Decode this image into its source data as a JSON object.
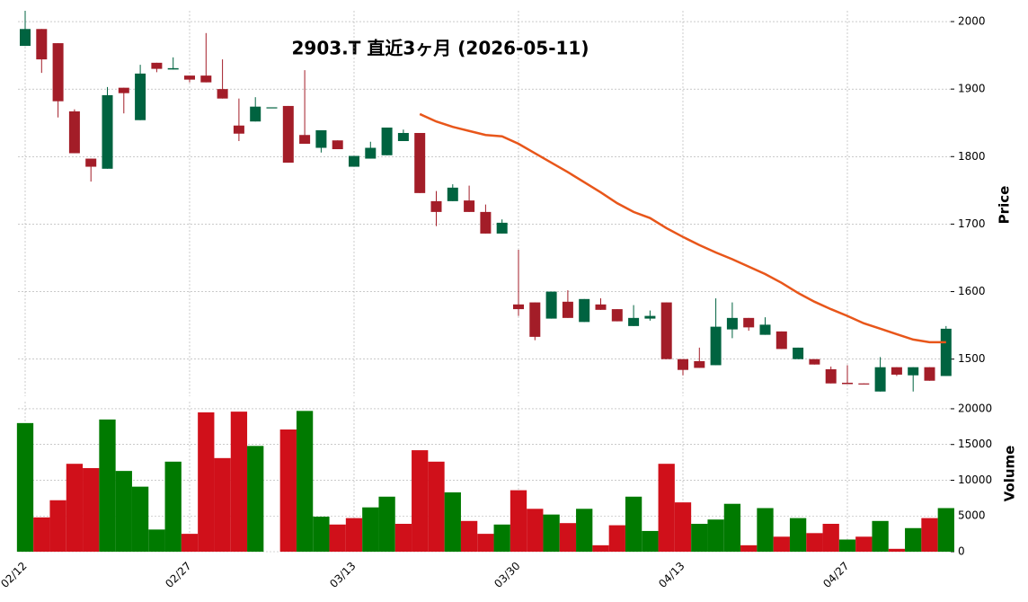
{
  "chart_data": {
    "type": "candlestick",
    "title": "2903.T  直近3ヶ月  (2026-05-11)",
    "categories": [
      "02/12",
      null,
      null,
      null,
      null,
      null,
      null,
      null,
      null,
      null,
      "02/27",
      null,
      null,
      null,
      null,
      null,
      null,
      null,
      null,
      null,
      "03/13",
      null,
      null,
      null,
      null,
      null,
      null,
      null,
      null,
      null,
      "03/30",
      null,
      null,
      null,
      null,
      null,
      null,
      null,
      null,
      null,
      "04/13",
      null,
      null,
      null,
      null,
      null,
      null,
      null,
      null,
      null,
      "04/27",
      null,
      null,
      null,
      null,
      null,
      null
    ],
    "open": [
      1964,
      1989,
      1968,
      1867,
      1797,
      1782,
      1902,
      1854,
      1939,
      1929,
      1920,
      1920,
      1900,
      1846,
      1852,
      1873,
      1875,
      1832,
      1813,
      1824,
      1785,
      1797,
      1802,
      1823,
      1835,
      1734,
      1734,
      1735,
      1718,
      1686,
      1581,
      1584,
      1560,
      1585,
      1555,
      1581,
      1574,
      1549,
      1560,
      1584,
      1500,
      1497,
      1491,
      1544,
      1561,
      1536,
      1541,
      1500,
      1500,
      1485,
      1465,
      1464,
      1452,
      1488,
      1476,
      1488,
      1475
    ],
    "high": [
      2016,
      1989,
      1968,
      1870,
      1797,
      1903,
      1902,
      1936,
      1939,
      1947,
      1920,
      1983,
      1944,
      1886,
      1888,
      1873,
      1875,
      1928,
      1839,
      1824,
      1801,
      1822,
      1843,
      1840,
      1835,
      1749,
      1759,
      1757,
      1729,
      1707,
      1662,
      1584,
      1600,
      1602,
      1589,
      1590,
      1574,
      1580,
      1572,
      1584,
      1500,
      1517,
      1590,
      1584,
      1561,
      1562,
      1541,
      1517,
      1500,
      1489,
      1491,
      1464,
      1503,
      1488,
      1488,
      1488,
      1549
    ],
    "low": [
      1964,
      1924,
      1858,
      1805,
      1763,
      1782,
      1864,
      1854,
      1925,
      1929,
      1910,
      1910,
      1886,
      1823,
      1852,
      1873,
      1791,
      1819,
      1806,
      1811,
      1785,
      1797,
      1802,
      1823,
      1746,
      1697,
      1734,
      1718,
      1686,
      1686,
      1564,
      1528,
      1560,
      1561,
      1555,
      1573,
      1556,
      1549,
      1557,
      1500,
      1476,
      1487,
      1491,
      1531,
      1542,
      1536,
      1515,
      1500,
      1492,
      1464,
      1463,
      1463,
      1452,
      1475,
      1452,
      1468,
      1475
    ],
    "close": [
      1989,
      1944,
      1882,
      1805,
      1785,
      1891,
      1894,
      1923,
      1930,
      1931,
      1914,
      1910,
      1886,
      1834,
      1874,
      1873,
      1791,
      1819,
      1839,
      1811,
      1801,
      1813,
      1843,
      1835,
      1746,
      1718,
      1754,
      1718,
      1686,
      1702,
      1574,
      1533,
      1600,
      1561,
      1589,
      1573,
      1556,
      1561,
      1564,
      1500,
      1484,
      1487,
      1548,
      1561,
      1547,
      1551,
      1515,
      1517,
      1492,
      1464,
      1463,
      1463,
      1488,
      1477,
      1488,
      1468,
      1545
    ],
    "up_color": "#006340",
    "down_color": "#a31d28",
    "ma": {
      "color": "#e8561a",
      "values": [
        null,
        null,
        null,
        null,
        null,
        null,
        null,
        null,
        null,
        null,
        null,
        null,
        null,
        null,
        null,
        null,
        null,
        null,
        null,
        null,
        null,
        null,
        null,
        null,
        1863,
        1852,
        1844,
        1838,
        1832,
        1830,
        1819,
        1805,
        1791,
        1777,
        1762,
        1747,
        1731,
        1718,
        1709,
        1694,
        1681,
        1669,
        1658,
        1648,
        1637,
        1626,
        1613,
        1598,
        1585,
        1574,
        1564,
        1553,
        1545,
        1537,
        1529,
        1525,
        1525
      ]
    },
    "volume": {
      "values": [
        18000,
        4800,
        7200,
        12300,
        11700,
        18500,
        11300,
        9100,
        3100,
        12600,
        2500,
        19500,
        13100,
        19600,
        14800,
        0,
        17100,
        19700,
        4900,
        3800,
        4700,
        6200,
        7700,
        3900,
        14200,
        12600,
        8300,
        4300,
        2500,
        3800,
        8600,
        6000,
        5200,
        4000,
        6000,
        900,
        3700,
        7700,
        2900,
        12300,
        6900,
        3900,
        4500,
        6700,
        900,
        6100,
        2100,
        4700,
        2600,
        3900,
        1700,
        2100,
        4300,
        400,
        3300,
        4700,
        6100
      ],
      "colors": [
        "#007a00",
        "#d0101a",
        "#d0101a",
        "#d0101a",
        "#d0101a",
        "#007a00",
        "#007a00",
        "#007a00",
        "#007a00",
        "#007a00",
        "#d0101a",
        "#d0101a",
        "#d0101a",
        "#d0101a",
        "#007a00",
        "#007a00",
        "#d0101a",
        "#007a00",
        "#007a00",
        "#d0101a",
        "#d0101a",
        "#007a00",
        "#007a00",
        "#d0101a",
        "#d0101a",
        "#d0101a",
        "#007a00",
        "#d0101a",
        "#d0101a",
        "#007a00",
        "#d0101a",
        "#d0101a",
        "#007a00",
        "#d0101a",
        "#007a00",
        "#d0101a",
        "#d0101a",
        "#007a00",
        "#007a00",
        "#d0101a",
        "#d0101a",
        "#007a00",
        "#007a00",
        "#007a00",
        "#d0101a",
        "#007a00",
        "#d0101a",
        "#007a00",
        "#d0101a",
        "#d0101a",
        "#007a00",
        "#d0101a",
        "#007a00",
        "#d0101a",
        "#007a00",
        "#d0101a",
        "#007a00"
      ]
    },
    "ylabel": "Price",
    "y2label": "Volume",
    "ylim": [
      1445,
      2016
    ],
    "yticks": [
      1500,
      1600,
      1700,
      1800,
      1900,
      2000
    ],
    "y2lim": [
      0,
      21000
    ],
    "y2ticks": [
      0,
      5000,
      10000,
      15000,
      20000
    ],
    "grid": true
  }
}
